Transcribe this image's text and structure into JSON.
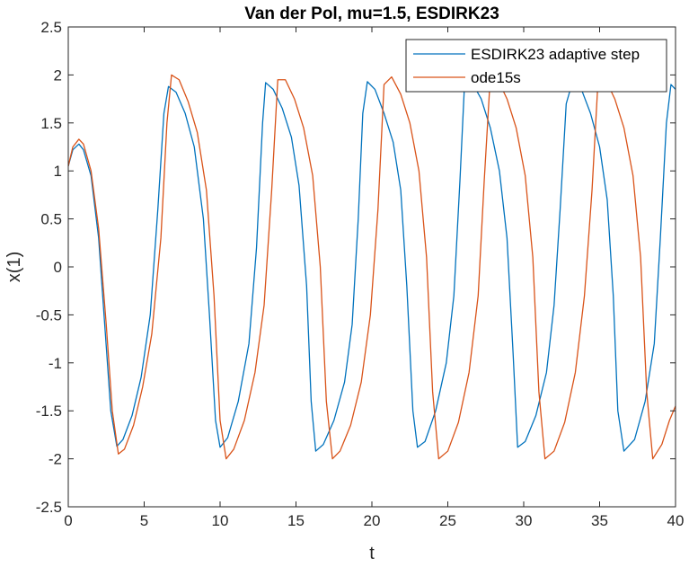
{
  "chart_data": {
    "type": "line",
    "title": "Van der Pol, mu=1.5, ESDIRK23",
    "xlabel": "t",
    "ylabel": "x(1)",
    "xlim": [
      0,
      40
    ],
    "ylim": [
      -2.5,
      2.5
    ],
    "xticks": [
      0,
      5,
      10,
      15,
      20,
      25,
      30,
      35,
      40
    ],
    "yticks": [
      -2.5,
      -2,
      -1.5,
      -1,
      -0.5,
      0,
      0.5,
      1,
      1.5,
      2,
      2.5
    ],
    "xtick_labels": [
      "0",
      "5",
      "10",
      "15",
      "20",
      "25",
      "30",
      "35",
      "40"
    ],
    "ytick_labels": [
      "-2.5",
      "-2",
      "-1.5",
      "-1",
      "-0.5",
      "0",
      "0.5",
      "1",
      "1.5",
      "2",
      "2.5"
    ],
    "grid": false,
    "legend_position": "top-right",
    "series": [
      {
        "name": "ESDIRK23 adaptive step",
        "color": "#0072BD",
        "x": [
          0,
          0.3,
          0.7,
          1.0,
          1.5,
          2.0,
          2.4,
          2.8,
          3.2,
          3.6,
          4.2,
          4.8,
          5.4,
          5.9,
          6.3,
          6.6,
          7.1,
          7.7,
          8.3,
          8.9,
          9.3,
          9.7,
          10.0,
          10.5,
          11.2,
          11.9,
          12.4,
          12.8,
          13.0,
          13.5,
          14.1,
          14.7,
          15.2,
          15.7,
          16.0,
          16.3,
          16.8,
          17.5,
          18.2,
          18.7,
          19.1,
          19.4,
          19.7,
          20.2,
          20.8,
          21.4,
          21.9,
          22.3,
          22.7,
          23.0,
          23.5,
          24.2,
          24.9,
          25.4,
          25.8,
          26.1,
          26.6,
          27.2,
          27.8,
          28.4,
          28.9,
          29.3,
          29.6,
          30.1,
          30.8,
          31.5,
          32.0,
          32.4,
          32.8,
          33.2,
          33.8,
          34.4,
          35.0,
          35.5,
          35.9,
          36.2,
          36.6,
          37.3,
          38.0,
          38.6,
          39.0,
          39.4,
          39.7,
          40.0
        ],
        "y": [
          1.05,
          1.22,
          1.28,
          1.22,
          0.95,
          0.3,
          -0.6,
          -1.5,
          -1.87,
          -1.8,
          -1.55,
          -1.15,
          -0.5,
          0.6,
          1.6,
          1.88,
          1.82,
          1.6,
          1.25,
          0.5,
          -0.5,
          -1.6,
          -1.88,
          -1.78,
          -1.4,
          -0.8,
          0.2,
          1.5,
          1.92,
          1.85,
          1.65,
          1.35,
          0.85,
          -0.2,
          -1.4,
          -1.92,
          -1.85,
          -1.6,
          -1.2,
          -0.6,
          0.5,
          1.6,
          1.93,
          1.85,
          1.6,
          1.3,
          0.8,
          -0.2,
          -1.5,
          -1.88,
          -1.82,
          -1.5,
          -1.0,
          -0.3,
          0.9,
          1.9,
          1.92,
          1.75,
          1.45,
          1.0,
          0.3,
          -0.9,
          -1.88,
          -1.82,
          -1.55,
          -1.1,
          -0.4,
          0.6,
          1.7,
          1.92,
          1.85,
          1.6,
          1.25,
          0.7,
          -0.3,
          -1.5,
          -1.92,
          -1.8,
          -1.4,
          -0.8,
          0.3,
          1.5,
          1.9,
          1.85
        ]
      },
      {
        "name": "ode15s",
        "color": "#D95319",
        "x": [
          0,
          0.3,
          0.7,
          1.0,
          1.5,
          2.0,
          2.5,
          2.9,
          3.3,
          3.7,
          4.3,
          4.9,
          5.5,
          6.1,
          6.5,
          6.8,
          7.3,
          7.9,
          8.5,
          9.1,
          9.6,
          10.0,
          10.4,
          10.9,
          11.6,
          12.3,
          12.9,
          13.4,
          13.8,
          14.3,
          14.9,
          15.5,
          16.1,
          16.6,
          17.0,
          17.4,
          17.9,
          18.6,
          19.3,
          19.9,
          20.4,
          20.8,
          21.3,
          21.9,
          22.5,
          23.1,
          23.6,
          24.0,
          24.4,
          25.0,
          25.7,
          26.4,
          27.0,
          27.4,
          27.8,
          28.3,
          28.9,
          29.5,
          30.1,
          30.6,
          31.0,
          31.4,
          32.0,
          32.7,
          33.4,
          34.0,
          34.5,
          34.9,
          35.4,
          36.0,
          36.6,
          37.2,
          37.7,
          38.1,
          38.5,
          39.1,
          39.6,
          40.0
        ],
        "y": [
          1.05,
          1.25,
          1.33,
          1.28,
          1.0,
          0.4,
          -0.6,
          -1.5,
          -1.95,
          -1.9,
          -1.65,
          -1.25,
          -0.7,
          0.3,
          1.5,
          2.0,
          1.95,
          1.72,
          1.4,
          0.8,
          -0.3,
          -1.6,
          -2.0,
          -1.9,
          -1.6,
          -1.1,
          -0.4,
          0.8,
          1.95,
          1.95,
          1.75,
          1.45,
          0.95,
          0.0,
          -1.4,
          -2.0,
          -1.92,
          -1.65,
          -1.2,
          -0.5,
          0.6,
          1.9,
          1.98,
          1.8,
          1.5,
          1.0,
          0.1,
          -1.3,
          -2.0,
          -1.92,
          -1.62,
          -1.1,
          -0.3,
          0.9,
          1.98,
          1.95,
          1.75,
          1.45,
          0.95,
          0.1,
          -1.3,
          -2.0,
          -1.92,
          -1.62,
          -1.1,
          -0.3,
          0.8,
          1.95,
          1.95,
          1.75,
          1.45,
          0.95,
          0.1,
          -1.3,
          -2.0,
          -1.85,
          -1.6,
          -1.45
        ]
      }
    ]
  }
}
